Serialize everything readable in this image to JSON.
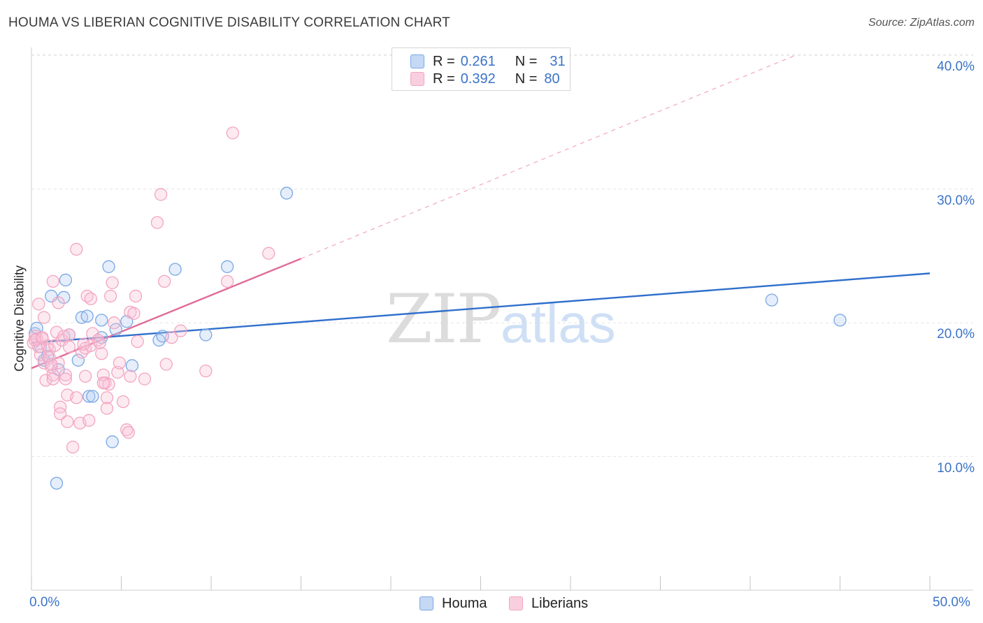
{
  "title": "HOUMA VS LIBERIAN COGNITIVE DISABILITY CORRELATION CHART",
  "source": "Source: ZipAtlas.com",
  "watermark": {
    "zip": "ZIP",
    "atlas": "atlas"
  },
  "legend": {
    "r_label": "R =",
    "n_label": "N =",
    "rows": [
      {
        "r": "0.261",
        "n": "31"
      },
      {
        "r": "0.392",
        "n": "80"
      }
    ]
  },
  "chart_data": {
    "type": "scatter",
    "title": "HOUMA VS LIBERIAN COGNITIVE DISABILITY CORRELATION CHART",
    "xlabel": "",
    "ylabel": "Cognitive Disability",
    "xlim": [
      0,
      50
    ],
    "ylim": [
      0,
      41
    ],
    "x_tick_labels": [
      "0.0%",
      "50.0%"
    ],
    "y_ticks": [
      10,
      20,
      30,
      40
    ],
    "y_tick_labels": [
      "10.0%",
      "20.0%",
      "30.0%",
      "40.0%"
    ],
    "grid": true,
    "legend_position": "bottom-center",
    "series": [
      {
        "name": "Houma",
        "color": "#7aa7e6",
        "line_color": "#2f6fcc",
        "r": 0.261,
        "n": 31,
        "trend": {
          "x": [
            0,
            50
          ],
          "y": [
            18.5,
            23.7
          ]
        },
        "points": [
          [
            0.2,
            19.2
          ],
          [
            0.3,
            19.6
          ],
          [
            0.5,
            18.2
          ],
          [
            0.7,
            17.2
          ],
          [
            0.9,
            17.5
          ],
          [
            1.1,
            22.0
          ],
          [
            1.4,
            8.0
          ],
          [
            1.5,
            16.5
          ],
          [
            1.8,
            21.9
          ],
          [
            1.9,
            23.2
          ],
          [
            2.1,
            19.1
          ],
          [
            2.6,
            17.2
          ],
          [
            2.8,
            20.4
          ],
          [
            3.1,
            20.5
          ],
          [
            3.2,
            14.5
          ],
          [
            3.4,
            14.5
          ],
          [
            3.9,
            20.2
          ],
          [
            3.9,
            18.9
          ],
          [
            4.3,
            24.2
          ],
          [
            4.5,
            11.1
          ],
          [
            4.7,
            19.5
          ],
          [
            5.3,
            20.1
          ],
          [
            5.6,
            16.8
          ],
          [
            7.1,
            18.7
          ],
          [
            7.3,
            19.0
          ],
          [
            8.0,
            24.0
          ],
          [
            9.7,
            19.1
          ],
          [
            10.9,
            24.2
          ],
          [
            14.2,
            29.7
          ],
          [
            41.2,
            21.7
          ],
          [
            45.0,
            20.2
          ]
        ]
      },
      {
        "name": "Liberians",
        "color": "#f2a5c2",
        "line_color": "#e06c99",
        "r": 0.392,
        "n": 80,
        "trend": {
          "x": [
            0,
            15
          ],
          "y": [
            16.6,
            24.8
          ]
        },
        "trend_extension": {
          "x": [
            15,
            42.5
          ],
          "y": [
            24.8,
            40.0
          ]
        },
        "points": [
          [
            0.1,
            18.5
          ],
          [
            0.2,
            19.0
          ],
          [
            0.3,
            18.8
          ],
          [
            0.4,
            18.2
          ],
          [
            0.4,
            21.4
          ],
          [
            0.5,
            17.6
          ],
          [
            0.6,
            18.8
          ],
          [
            0.7,
            17.0
          ],
          [
            0.7,
            20.4
          ],
          [
            0.8,
            15.7
          ],
          [
            0.9,
            18.3
          ],
          [
            1.0,
            18.0
          ],
          [
            1.0,
            17.4
          ],
          [
            1.1,
            16.7
          ],
          [
            1.2,
            16.1
          ],
          [
            1.2,
            15.8
          ],
          [
            1.2,
            23.1
          ],
          [
            1.3,
            18.3
          ],
          [
            1.4,
            19.3
          ],
          [
            1.5,
            17.0
          ],
          [
            1.5,
            21.5
          ],
          [
            1.6,
            13.7
          ],
          [
            1.6,
            13.2
          ],
          [
            1.7,
            18.7
          ],
          [
            1.9,
            16.1
          ],
          [
            1.9,
            15.8
          ],
          [
            2.0,
            14.6
          ],
          [
            2.0,
            12.6
          ],
          [
            2.1,
            18.2
          ],
          [
            2.1,
            19.1
          ],
          [
            2.3,
            10.7
          ],
          [
            2.5,
            14.4
          ],
          [
            2.5,
            25.5
          ],
          [
            2.7,
            12.5
          ],
          [
            2.8,
            17.8
          ],
          [
            3.0,
            18.1
          ],
          [
            3.0,
            16.0
          ],
          [
            3.1,
            22.0
          ],
          [
            3.2,
            12.7
          ],
          [
            3.3,
            18.3
          ],
          [
            3.3,
            21.8
          ],
          [
            3.4,
            19.2
          ],
          [
            3.7,
            18.7
          ],
          [
            3.8,
            18.5
          ],
          [
            3.9,
            17.7
          ],
          [
            4.0,
            16.1
          ],
          [
            4.1,
            15.5
          ],
          [
            4.2,
            13.6
          ],
          [
            4.2,
            14.4
          ],
          [
            4.3,
            15.4
          ],
          [
            4.4,
            22.0
          ],
          [
            4.5,
            23.0
          ],
          [
            4.6,
            20.0
          ],
          [
            4.8,
            16.3
          ],
          [
            4.9,
            17.0
          ],
          [
            5.1,
            14.1
          ],
          [
            5.3,
            12.0
          ],
          [
            5.4,
            11.8
          ],
          [
            5.5,
            20.8
          ],
          [
            5.7,
            20.7
          ],
          [
            5.8,
            22.0
          ],
          [
            5.9,
            18.6
          ],
          [
            6.3,
            15.8
          ],
          [
            7.0,
            27.5
          ],
          [
            7.2,
            29.6
          ],
          [
            7.4,
            23.1
          ],
          [
            7.5,
            16.9
          ],
          [
            7.8,
            18.9
          ],
          [
            8.3,
            19.4
          ],
          [
            9.7,
            16.4
          ],
          [
            10.9,
            23.1
          ],
          [
            11.2,
            34.2
          ],
          [
            13.2,
            25.2
          ],
          [
            0.2,
            18.7
          ],
          [
            0.6,
            18.9
          ],
          [
            1.1,
            16.9
          ],
          [
            1.8,
            19.0
          ],
          [
            2.9,
            18.4
          ],
          [
            4.0,
            15.5
          ],
          [
            5.5,
            16.0
          ]
        ]
      }
    ]
  }
}
